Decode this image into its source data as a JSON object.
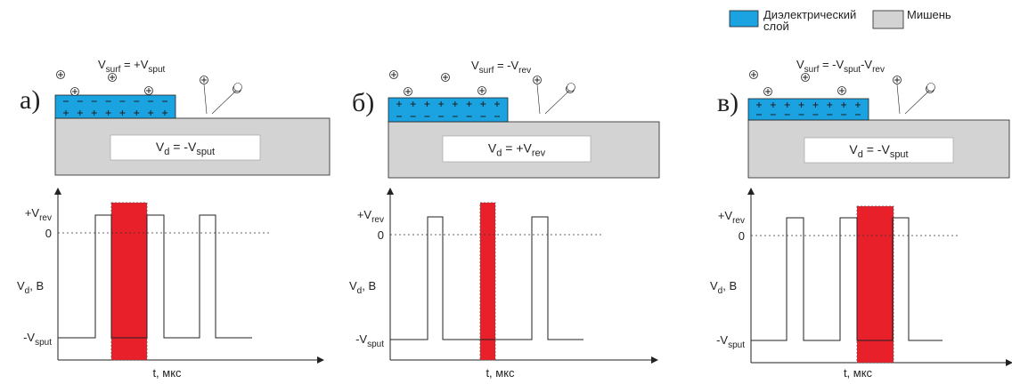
{
  "legend": {
    "dielectric": [
      "Диэлектрический",
      "слой"
    ],
    "target": "Мишень"
  },
  "panels": [
    {
      "label": "а)",
      "v_surf": [
        "V",
        "surf",
        " = +V",
        "sput"
      ],
      "v_d": [
        "V",
        "d",
        " = -V",
        "sput"
      ],
      "axis": {
        "v_rev": [
          "+V",
          "rev"
        ],
        "zero": "0",
        "y_label": [
          "V",
          "d",
          ", B"
        ],
        "v_sput": [
          "-V",
          "sput"
        ],
        "x_label": "t, мкс"
      }
    },
    {
      "label": "б)",
      "v_surf": [
        "V",
        "surf",
        " = -V",
        "rev"
      ],
      "v_d": [
        "V",
        "d",
        " = +V",
        "rev"
      ],
      "axis": {
        "v_rev": [
          "+V",
          "rev"
        ],
        "zero": "0",
        "y_label": [
          "V",
          "d",
          ", B"
        ],
        "v_sput": [
          "-V",
          "sput"
        ],
        "x_label": "t, мкс"
      }
    },
    {
      "label": "в)",
      "v_surf": [
        "V",
        "surf",
        " = -V",
        "sput",
        "-V",
        "rev"
      ],
      "v_d": [
        "V",
        "d",
        " = -V",
        "sput"
      ],
      "axis": {
        "v_rev": [
          "+V",
          "rev"
        ],
        "zero": "0",
        "y_label": [
          "V",
          "d",
          ", B"
        ],
        "v_sput": [
          "-V",
          "sput"
        ],
        "x_label": "t, мкс"
      }
    }
  ]
}
